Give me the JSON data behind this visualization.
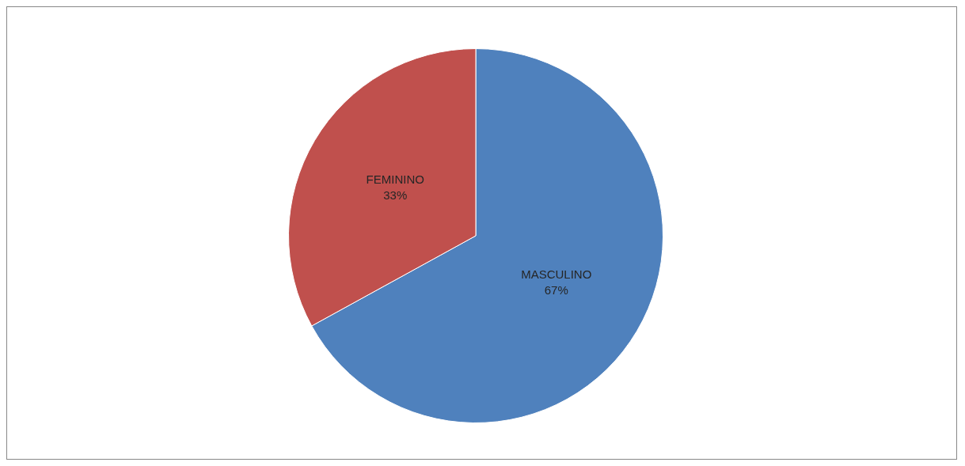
{
  "chart_data": {
    "type": "pie",
    "categories": [
      "MASCULINO",
      "FEMININO"
    ],
    "values": [
      67,
      33
    ],
    "value_labels": [
      "67%",
      "33%"
    ],
    "colors": [
      "#4f81bd",
      "#c0504d"
    ],
    "legend": false
  }
}
